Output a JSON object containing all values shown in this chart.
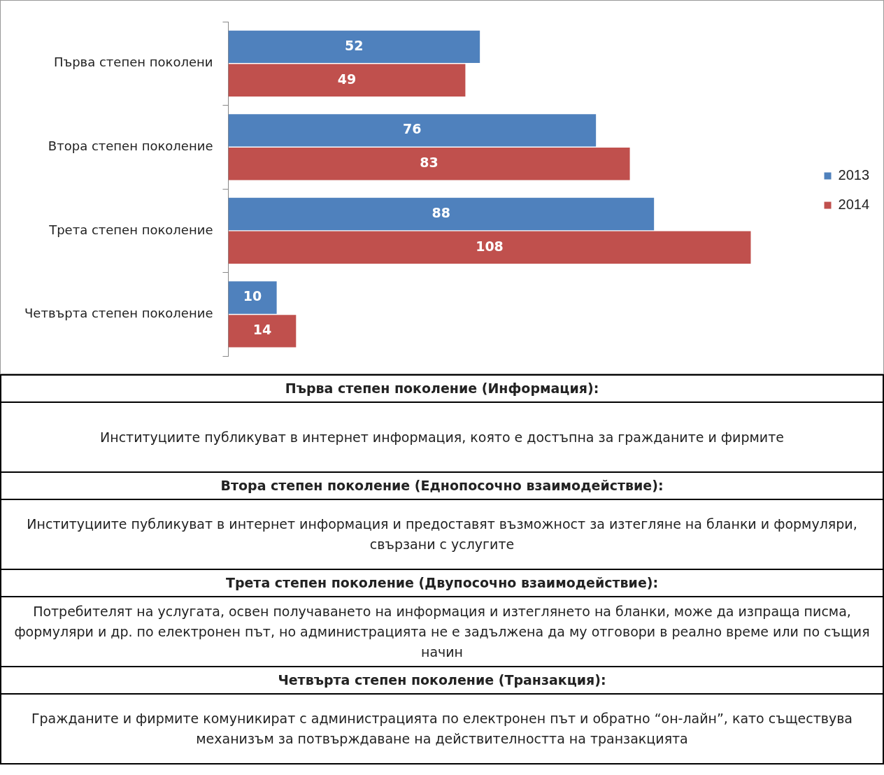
{
  "chart_data": {
    "type": "bar",
    "orientation": "horizontal",
    "categories": [
      "Първа степен поколени",
      "Втора степен поколение",
      "Трета степен поколение",
      "Четвърта степен поколение"
    ],
    "series": [
      {
        "name": "2013",
        "color": "#4f81bd",
        "values": [
          52,
          76,
          88,
          10
        ]
      },
      {
        "name": "2014",
        "color": "#c0504d",
        "values": [
          49,
          83,
          108,
          14
        ]
      }
    ],
    "data_labels": true,
    "legend": "right",
    "tick_labels": "y",
    "annotations": [
      "Първа степен поколение (Информация):",
      "Институциите публикуват в интернет информация, която е достъпна за гражданите и фирмите",
      "Втора степен поколение (Еднопосочно взаимодействие):",
      "Институциите публикуват в интернет информация и предоставят възможност за изтегляне на бланки и формуляри, свързани с услугите",
      "Трета степен поколение (Двупосочно взаимодействие):",
      "Потребителят на услугата, освен получаването на информация и изтеглянето на бланки, може да изпраща писма, формуляри и др. по електронен път, но администрацията не е задължена да му отговори в реално време или по същия начин",
      "Четвърта степен поколение (Транзакция):",
      "Гражданите и фирмите комуникират с администрацията по електронен път и обратно “он-лайн”, като съществува механизъм за потвърждаване на действителността на транзакцията"
    ]
  }
}
